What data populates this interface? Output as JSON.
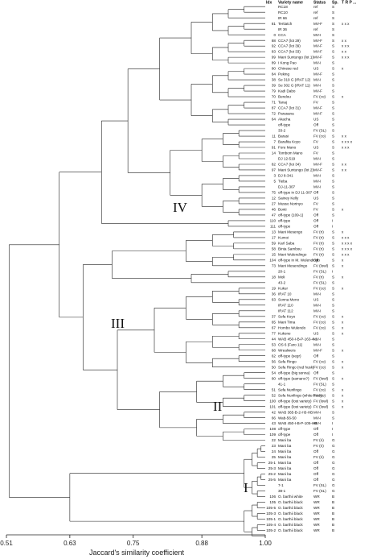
{
  "headers": {
    "idx": "Idx",
    "variety": "Variety name",
    "status": "Status",
    "sp": "Sp.",
    "marks": "T  R  P  ..."
  },
  "clades": [
    "IV",
    "III",
    "II",
    "I"
  ],
  "axis": {
    "title": "Jaccard's similarity coefficient",
    "ticks": [
      "0.51",
      "0.63",
      "0.75",
      "0.88",
      "1.00"
    ]
  },
  "rows": [
    {
      "n": "",
      "name": "RC18",
      "st": "ref",
      "sp": "S",
      "m": ""
    },
    {
      "n": "",
      "name": "RC10",
      "st": "ref",
      "sp": "S",
      "m": ""
    },
    {
      "n": "",
      "name": "IR 66",
      "st": "ref",
      "sp": "S",
      "m": ""
    },
    {
      "n": "81",
      "name": "Tertiatch",
      "st": "MV-F",
      "sp": "S",
      "m": "x  x  x"
    },
    {
      "n": "",
      "name": "IR 36",
      "st": "ref",
      "sp": "S",
      "m": ""
    },
    {
      "n": "0",
      "name": "CCA",
      "st": "MV-I",
      "sp": "S",
      "m": ""
    },
    {
      "n": "88",
      "name": "CCA7 (lot 29)",
      "st": "MV-F",
      "sp": "S",
      "m": "x  x"
    },
    {
      "n": "92",
      "name": "CCA7 (lot 39)",
      "st": "MV-F",
      "sp": "S",
      "m": "x  x  x"
    },
    {
      "n": "83",
      "name": "CCA7 (lot 33)",
      "st": "MV-F",
      "sp": "S",
      "m": "x  x"
    },
    {
      "n": "99",
      "name": "Mani Suntungo (lot 1)",
      "st": "MV-F",
      "sp": "S",
      "m": "x  x  x"
    },
    {
      "n": "89",
      "name": "I Kong Pao",
      "st": "MV-I",
      "sp": "S",
      "m": ""
    },
    {
      "n": "80",
      "name": "Chinese red",
      "st": "US",
      "sp": "S",
      "m": "x"
    },
    {
      "n": "84",
      "name": "Peking",
      "st": "MV-F",
      "sp": "S",
      "m": ""
    },
    {
      "n": "38",
      "name": "Se 319 G (IRAT 12)",
      "st": "MV-I",
      "sp": "S",
      "m": ""
    },
    {
      "n": "39",
      "name": "Se 302 G (IRAT 11)",
      "st": "MV-I",
      "sp": "S",
      "m": ""
    },
    {
      "n": "79",
      "name": "Kadi Dabo",
      "st": "MV-F",
      "sp": "S",
      "m": ""
    },
    {
      "n": "70",
      "name": "Bendou",
      "st": "FV (co)",
      "sp": "S",
      "m": "x"
    },
    {
      "n": "71",
      "name": "Tanaj",
      "st": "FV",
      "sp": "S",
      "m": ""
    },
    {
      "n": "87",
      "name": "CCA7 (lot 31)",
      "st": "MV-F",
      "sp": "S",
      "m": ""
    },
    {
      "n": "72",
      "name": "Parasana",
      "st": "MV-F",
      "sp": "S",
      "m": ""
    },
    {
      "n": "64",
      "name": "Akacha",
      "st": "US",
      "sp": "S",
      "m": ""
    },
    {
      "n": "",
      "name": "off-type",
      "st": "Off",
      "sp": "S",
      "m": ""
    },
    {
      "n": "",
      "name": "33-2",
      "st": "FV (SL)",
      "sp": "S",
      "m": ""
    },
    {
      "n": "11",
      "name": "Barasi",
      "st": "FV (co)",
      "sp": "S",
      "m": "x  x"
    },
    {
      "n": "7",
      "name": "Barafita Koyo",
      "st": "FV",
      "sp": "S",
      "m": "x  x  x  x"
    },
    {
      "n": "91",
      "name": "Fore Mano",
      "st": "US",
      "sp": "S",
      "m": "x  x  x"
    },
    {
      "n": "14",
      "name": "Tombom Mano",
      "st": "FV",
      "sp": "S",
      "m": ""
    },
    {
      "n": "",
      "name": "DJ 12-519",
      "st": "MV-I",
      "sp": "S",
      "m": ""
    },
    {
      "n": "82",
      "name": "CCA7 (lot 34)",
      "st": "MV-F",
      "sp": "S",
      "m": "x  x"
    },
    {
      "n": "97",
      "name": "Mani Suntungo (lot 2)",
      "st": "MV-F",
      "sp": "S",
      "m": "x  x"
    },
    {
      "n": "3",
      "name": "DJ 8-341",
      "st": "MV-I",
      "sp": "S",
      "m": ""
    },
    {
      "n": "5",
      "name": "Tieba",
      "st": "MV-I",
      "sp": "S",
      "m": ""
    },
    {
      "n": "",
      "name": "DJ-11-307",
      "st": "MV-I",
      "sp": "S",
      "m": ""
    },
    {
      "n": "75",
      "name": "off-type in DJ 11-307",
      "st": "Off",
      "sp": "S",
      "m": ""
    },
    {
      "n": "12",
      "name": "Sainey Kelly",
      "st": "US",
      "sp": "S",
      "m": ""
    },
    {
      "n": "27",
      "name": "Musso Norinyo",
      "st": "FV",
      "sp": "S",
      "m": ""
    },
    {
      "n": "46",
      "name": "Bonti",
      "st": "FV",
      "sp": "S",
      "m": "x"
    },
    {
      "n": "47",
      "name": "off-type (109-1)",
      "st": "Off",
      "sp": "S",
      "m": ""
    },
    {
      "n": "110",
      "name": "off-type",
      "st": "Off",
      "sp": "I",
      "m": ""
    },
    {
      "n": "111",
      "name": "off-type",
      "st": "Off",
      "sp": "I",
      "m": ""
    },
    {
      "n": "13",
      "name": "Mani Mesengo",
      "st": "FV (ri)",
      "sp": "S",
      "m": "x"
    },
    {
      "n": "17",
      "name": "Kumoi",
      "st": "FV (ri)",
      "sp": "S",
      "m": "x  x  x"
    },
    {
      "n": "59",
      "name": "Karl Saba",
      "st": "FV (ri)",
      "sp": "S",
      "m": "x  x  x  x"
    },
    {
      "n": "58",
      "name": "Binta Sambou",
      "st": "FV (ri)",
      "sp": "S",
      "m": "x  x  x  x"
    },
    {
      "n": "15",
      "name": "Mani Wulendingo",
      "st": "FV (ri)",
      "sp": "S",
      "m": "x  x  x"
    },
    {
      "n": "104",
      "name": "off-type in M. Wulendingo",
      "st": "Off",
      "sp": "S",
      "m": "x"
    },
    {
      "n": "73",
      "name": "Mani Mesendingo",
      "st": "FV (lowl)",
      "sp": "S",
      "m": "x"
    },
    {
      "n": "",
      "name": "20-1",
      "st": "FV (SL)",
      "sp": "I",
      "m": ""
    },
    {
      "n": "18",
      "name": "Moli",
      "st": "FV (ri)",
      "sp": "S",
      "m": "x"
    },
    {
      "n": "",
      "name": "43-2",
      "st": "FV (SL)",
      "sp": "S",
      "m": ""
    },
    {
      "n": "19",
      "name": "Kukur",
      "st": "FV (co)",
      "sp": "S",
      "m": "x"
    },
    {
      "n": "36",
      "name": "IRAT 10",
      "st": "MV-I",
      "sp": "S",
      "m": ""
    },
    {
      "n": "63",
      "name": "Sonna Meno",
      "st": "US",
      "sp": "S",
      "m": ""
    },
    {
      "n": "",
      "name": "IRAT 110",
      "st": "MV-I",
      "sp": "S",
      "m": ""
    },
    {
      "n": "",
      "name": "IRAT 112",
      "st": "MV-I",
      "sp": "S",
      "m": ""
    },
    {
      "n": "37",
      "name": "Sefa Koyo",
      "st": "FV (co)",
      "sp": "S",
      "m": "x"
    },
    {
      "n": "65",
      "name": "Mani Tima",
      "st": "FV (co)",
      "sp": "S",
      "m": "x"
    },
    {
      "n": "67",
      "name": "Hombo Wulendo",
      "st": "FV (co)",
      "sp": "S",
      "m": "x"
    },
    {
      "n": "77",
      "name": "Kukone",
      "st": "US",
      "sp": "S",
      "m": "x"
    },
    {
      "n": "44",
      "name": "WAB 450-I-B-P-163-4-1",
      "st": "MV-I",
      "sp": "S",
      "m": ""
    },
    {
      "n": "53",
      "name": "OS 6 (Faro 11)",
      "st": "MV-I",
      "sp": "S",
      "m": ""
    },
    {
      "n": "68",
      "name": "Wrealwers",
      "st": "MV-F",
      "sp": "S",
      "m": "x"
    },
    {
      "n": "62",
      "name": "off-type (segr)",
      "st": "Off",
      "sp": "S",
      "m": ""
    },
    {
      "n": "56",
      "name": "Sefa Ringo",
      "st": "FV (co)",
      "sp": "S",
      "m": "x"
    },
    {
      "n": "50",
      "name": "Sefa Ringo (red husk)",
      "st": "FV (co)",
      "sp": "S",
      "m": "x"
    },
    {
      "n": "54",
      "name": "off-type (big sonna)",
      "st": "Off",
      "sp": "S",
      "m": ""
    },
    {
      "n": "60",
      "name": "off-type (samano?)",
      "st": "FV (lowl)",
      "sp": "S",
      "m": "x"
    },
    {
      "n": "",
      "name": "41-1",
      "st": "FV (SL)",
      "sp": "S",
      "m": ""
    },
    {
      "n": "51",
      "name": "Sefa Nunfingo",
      "st": "FV (co)",
      "sp": "S",
      "m": "x"
    },
    {
      "n": "52",
      "name": "Sefa Nunfingo (white husk)",
      "st": "FV (co)",
      "sp": "S",
      "m": "x"
    },
    {
      "n": "100",
      "name": "off-type (lost variety)",
      "st": "FV (lowl)",
      "sp": "S",
      "m": "x"
    },
    {
      "n": "101",
      "name": "off-type (lost variety)",
      "st": "FV (lowl)",
      "sp": "S",
      "m": "x"
    },
    {
      "n": "42",
      "name": "WAB 365-B-2-H3-HB",
      "st": "MV-I",
      "sp": "S",
      "m": ""
    },
    {
      "n": "66",
      "name": "Wab-56-50",
      "st": "MV-I",
      "sp": "S",
      "m": ""
    },
    {
      "n": "43",
      "name": "WAB 450-I-B-P-105-HB",
      "st": "MV-I",
      "sp": "I",
      "m": ""
    },
    {
      "n": "108",
      "name": "off-type",
      "st": "Off",
      "sp": "I",
      "m": ""
    },
    {
      "n": "109",
      "name": "off-type",
      "st": "Off",
      "sp": "I",
      "m": ""
    },
    {
      "n": "22",
      "name": "Mani ba",
      "st": "FV (ri)",
      "sp": "G",
      "m": ""
    },
    {
      "n": "23",
      "name": "Mani ba",
      "st": "FV (ri)",
      "sp": "G",
      "m": ""
    },
    {
      "n": "24",
      "name": "Mani ba",
      "st": "Off",
      "sp": "G",
      "m": ""
    },
    {
      "n": "25",
      "name": "Mani ba",
      "st": "FV (ri)",
      "sp": "G",
      "m": ""
    },
    {
      "n": "25-1",
      "name": "Mani ba",
      "st": "Off",
      "sp": "G",
      "m": ""
    },
    {
      "n": "25-3",
      "name": "Mani ba",
      "st": "Off",
      "sp": "G",
      "m": ""
    },
    {
      "n": "25-2",
      "name": "Mani ba",
      "st": "Off",
      "sp": "G",
      "m": ""
    },
    {
      "n": "25-5",
      "name": "Mani ba",
      "st": "Off",
      "sp": "G",
      "m": ""
    },
    {
      "n": "",
      "name": "7-1",
      "st": "FV (SL)",
      "sp": "G",
      "m": ""
    },
    {
      "n": "",
      "name": "38-1",
      "st": "FV (SL)",
      "sp": "G",
      "m": ""
    },
    {
      "n": "106",
      "name": "O. barthii white",
      "st": "WR",
      "sp": "B",
      "m": ""
    },
    {
      "n": "105",
      "name": "O. barthii black",
      "st": "WR",
      "sp": "B",
      "m": ""
    },
    {
      "n": "105-5",
      "name": "O. barthii black",
      "st": "WR",
      "sp": "B",
      "m": ""
    },
    {
      "n": "105-3",
      "name": "O. barthii black",
      "st": "WR",
      "sp": "B",
      "m": ""
    },
    {
      "n": "105-1",
      "name": "O. barthii black",
      "st": "WR",
      "sp": "B",
      "m": ""
    },
    {
      "n": "105-4",
      "name": "O. barthii black",
      "st": "WR",
      "sp": "B",
      "m": ""
    },
    {
      "n": "105-2",
      "name": "O. barthii black",
      "st": "WR",
      "sp": "B",
      "m": ""
    }
  ]
}
